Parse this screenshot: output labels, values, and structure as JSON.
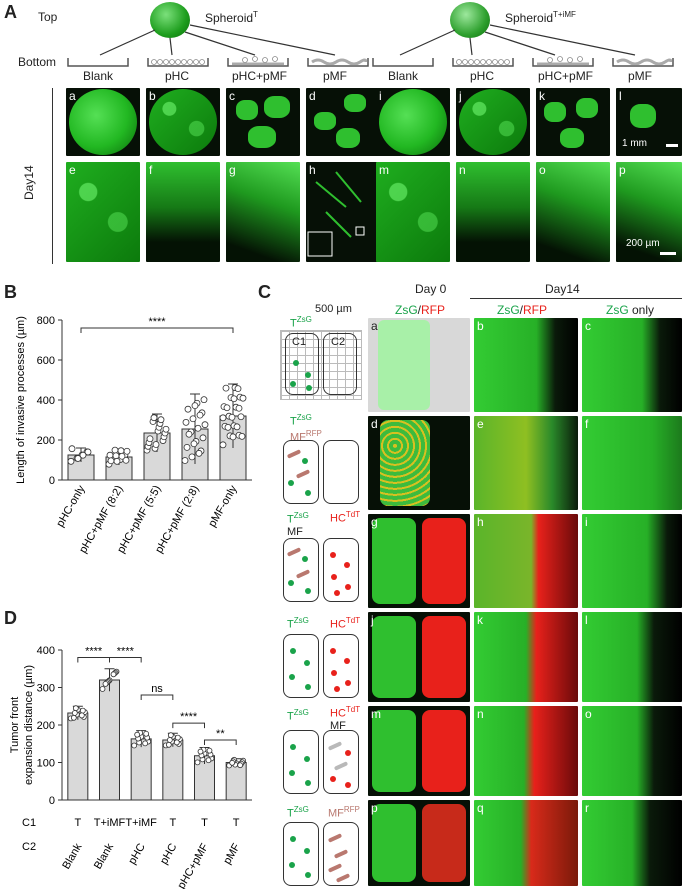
{
  "panelA": {
    "letter": "A",
    "top_label": "Top",
    "bottom_label": "Bottom",
    "spheroid_left": "Spheroid",
    "spheroid_left_sup": "T",
    "spheroid_right": "Spheroid",
    "spheroid_right_sup": "T+iMF",
    "conditions": [
      "Blank",
      "pHC",
      "pHC+pMF",
      "pMF",
      "Blank",
      "pHC",
      "pHC+pMF",
      "pMF"
    ],
    "row_label": "Day14",
    "top_tiles": [
      "a",
      "b",
      "c",
      "d",
      "i",
      "j",
      "k",
      "l"
    ],
    "bottom_tiles": [
      "e",
      "f",
      "g",
      "h",
      "m",
      "n",
      "o",
      "p"
    ],
    "scale_top": "1 mm",
    "scale_bottom": "200 µm"
  },
  "panelB": {
    "letter": "B",
    "significance": "****",
    "chart_data": {
      "type": "bar",
      "categories": [
        "pHC-only",
        "pHC+pMF (8:2)",
        "pHC+pMF (5:5)",
        "pHC+pMF (2:8)",
        "pMF-only"
      ],
      "values": [
        125,
        115,
        235,
        255,
        320
      ],
      "errors": [
        35,
        40,
        95,
        175,
        160
      ],
      "ylabel": "Length of invasive processes (µm)",
      "ylim": [
        0,
        800
      ],
      "yticks": [
        0,
        200,
        400,
        600,
        800
      ],
      "grid": false
    }
  },
  "panelC": {
    "letter": "C",
    "scale_label": "500 µm",
    "well_labels": [
      "C1",
      "C2"
    ],
    "col_headers": {
      "day0": "Day 0",
      "day14": "Day14",
      "zsg_rfp_a": "ZsG",
      "slash": "/",
      "rfp": "RFP",
      "zsg_only_a": "ZsG",
      "zsg_only_b": " only"
    },
    "rows": [
      {
        "left": "T",
        "left_sup": "ZsG",
        "left2": "",
        "left2_sup": "",
        "right": "",
        "right_sup": "",
        "right2": "",
        "tiles": [
          "a",
          "b",
          "c"
        ]
      },
      {
        "left": "T",
        "left_sup": "ZsG",
        "left2": "MF",
        "left2_sup": "RFP",
        "right": "",
        "right_sup": "",
        "right2": "",
        "tiles": [
          "d",
          "e",
          "f"
        ]
      },
      {
        "left": "T",
        "left_sup": "ZsG",
        "left2": "MF",
        "left2_sup": "",
        "right": "HC",
        "right_sup": "TdT",
        "right2": "",
        "tiles": [
          "g",
          "h",
          "i"
        ]
      },
      {
        "left": "T",
        "left_sup": "ZsG",
        "left2": "",
        "left2_sup": "",
        "right": "HC",
        "right_sup": "TdT",
        "right2": "",
        "tiles": [
          "j",
          "k",
          "l"
        ]
      },
      {
        "left": "T",
        "left_sup": "ZsG",
        "left2": "",
        "left2_sup": "",
        "right": "HC",
        "right_sup": "TdT",
        "right2": "MF",
        "tiles": [
          "m",
          "n",
          "o"
        ]
      },
      {
        "left": "T",
        "left_sup": "ZsG",
        "left2": "",
        "left2_sup": "",
        "right": "MF",
        "right_sup": "RFP",
        "right2": "",
        "tiles": [
          "p",
          "q",
          "r"
        ]
      }
    ]
  },
  "panelD": {
    "letter": "D",
    "significance": [
      "****",
      "****",
      "ns",
      "****",
      "**"
    ],
    "row_labels": [
      "C1",
      "C2"
    ],
    "c1": [
      "T",
      "T+iMF",
      "T+iMF",
      "T",
      "T",
      "T"
    ],
    "c2": [
      "Blank",
      "Blank",
      "pHC",
      "pHC",
      "pHC+pMF",
      "pMF"
    ],
    "chart_data": {
      "type": "bar",
      "categories": [
        "T / Blank",
        "T+iMF / Blank",
        "T+iMF / pHC",
        "T / pHC",
        "T / pHC+pMF",
        "T / pMF"
      ],
      "values": [
        232,
        320,
        163,
        160,
        118,
        100
      ],
      "errors": [
        18,
        30,
        22,
        18,
        22,
        10
      ],
      "ylabel": "Tumor front expansion distance (µm)",
      "ylabel_line1": "Tumor front",
      "ylabel_line2": "expansion distance (µm)",
      "ylim": [
        0,
        400
      ],
      "yticks": [
        0,
        100,
        200,
        300,
        400
      ],
      "grid": false
    }
  }
}
